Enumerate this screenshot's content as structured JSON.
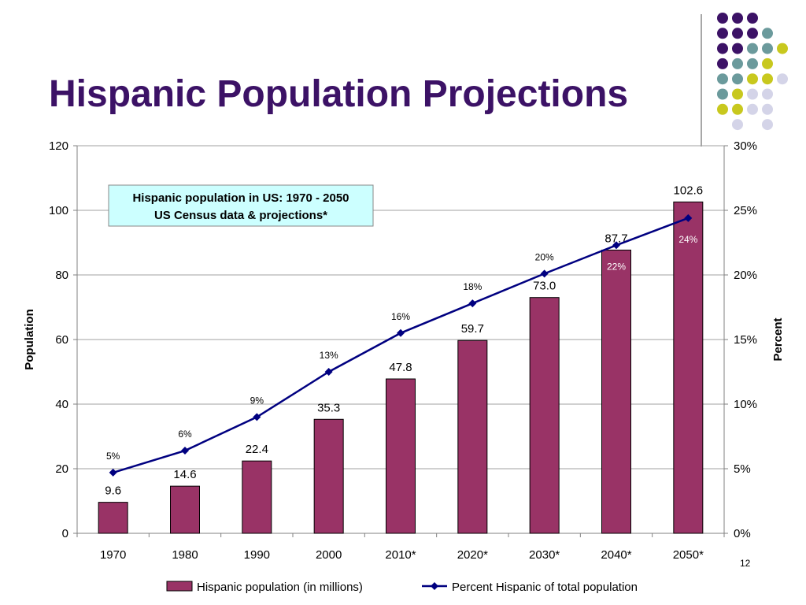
{
  "slide": {
    "title": "Hispanic Population Projections",
    "page_number": "12"
  },
  "decoration": {
    "dot_colors": {
      "purple": "#3c1266",
      "teal": "#6b9a9c",
      "olive": "#c8c81e",
      "lavender": "#d4d4e8"
    }
  },
  "colors": {
    "bar": "#993366",
    "line": "#000080",
    "annotation_box_fill": "#ccffff",
    "grid": "#a0a0a0"
  },
  "chart_data": {
    "type": "bar",
    "categories": [
      "1970",
      "1980",
      "1990",
      "2000",
      "2010*",
      "2020*",
      "2030*",
      "2040*",
      "2050*"
    ],
    "series": [
      {
        "name": "Hispanic population (in millions)",
        "type": "bar",
        "axis": "left",
        "values": [
          9.6,
          14.6,
          22.4,
          35.3,
          47.8,
          59.7,
          73.0,
          87.7,
          102.6
        ],
        "labels": [
          "9.6",
          "14.6",
          "22.4",
          "35.3",
          "47.8",
          "59.7",
          "73.0",
          "87.7",
          "102.6"
        ]
      },
      {
        "name": "Percent Hispanic of total population",
        "type": "line",
        "axis": "right",
        "values": [
          4.7,
          6.4,
          9.0,
          12.5,
          15.5,
          17.8,
          20.1,
          22.3,
          24.4
        ],
        "labels": [
          "5%",
          "6%",
          "9%",
          "13%",
          "16%",
          "18%",
          "20%",
          "22%",
          "24%"
        ]
      }
    ],
    "annotation": {
      "line1": "Hispanic population in US: 1970 - 2050",
      "line2": "US Census data & projections*"
    },
    "ylabel": "Population",
    "ylabel_right": "Percent",
    "ylim": [
      0,
      120
    ],
    "yticks": [
      0,
      20,
      40,
      60,
      80,
      100,
      120
    ],
    "ylim_right": [
      0,
      30
    ],
    "yticks_right": [
      "0%",
      "5%",
      "10%",
      "15%",
      "20%",
      "25%",
      "30%"
    ],
    "grid": true,
    "legend": "bottom"
  }
}
